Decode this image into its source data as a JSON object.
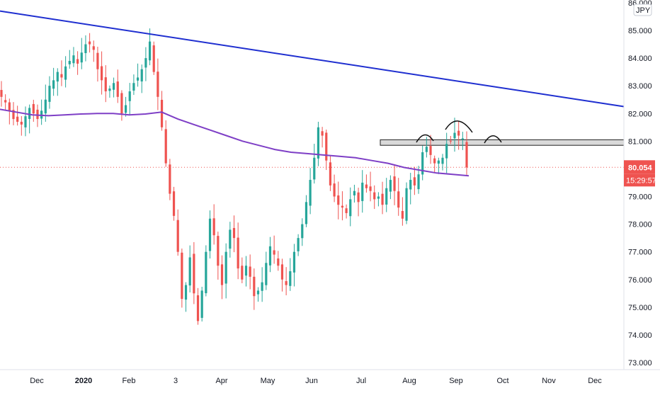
{
  "chart_data": {
    "type": "candlestick",
    "currency": "JPY",
    "price_axis": {
      "ticks": [
        "86.000",
        "85.000",
        "84.000",
        "83.000",
        "82.000",
        "81.000",
        "80.000",
        "79.000",
        "78.000",
        "77.000",
        "76.000",
        "75.000",
        "74.000",
        "73.000"
      ],
      "ylim": [
        72.8,
        86.1
      ]
    },
    "time_axis": {
      "labels": [
        {
          "text": "Dec",
          "bold": false
        },
        {
          "text": "2020",
          "bold": true
        },
        {
          "text": "Feb",
          "bold": false
        },
        {
          "text": "3",
          "bold": false
        },
        {
          "text": "Apr",
          "bold": false
        },
        {
          "text": "May",
          "bold": false
        },
        {
          "text": "Jun",
          "bold": false
        },
        {
          "text": "Jul",
          "bold": false
        },
        {
          "text": "Aug",
          "bold": false
        },
        {
          "text": "Sep",
          "bold": false
        },
        {
          "text": "Oct",
          "bold": false
        },
        {
          "text": "Nov",
          "bold": false
        },
        {
          "text": "Dec",
          "bold": false
        }
      ]
    },
    "last_price": "80.054",
    "countdown": "15:29:57",
    "last_price_color": "#ef5350",
    "up_color": "#26a69a",
    "down_color": "#ef5350",
    "trendline_color": "#1f2fd0",
    "moving_average_color": "#7e3fc6",
    "resistance_zone": [
      80.85,
      81.05
    ],
    "trendline": {
      "from": 85.7,
      "to": 82.25
    },
    "moving_average": [
      82.15,
      82.05,
      81.95,
      81.92,
      81.95,
      81.98,
      82.0,
      82.0,
      81.95,
      81.98,
      82.05,
      81.8,
      81.6,
      81.4,
      81.2,
      81.0,
      80.85,
      80.7,
      80.6,
      80.55,
      80.5,
      80.45,
      80.4,
      80.3,
      80.2,
      80.05,
      79.95,
      79.85,
      79.8,
      79.75
    ],
    "closes": [
      82.6,
      82.4,
      82.1,
      81.8,
      81.7,
      81.6,
      81.9,
      82.2,
      82.0,
      81.8,
      82.1,
      82.5,
      83.0,
      83.2,
      83.5,
      83.3,
      83.7,
      83.9,
      84.1,
      83.8,
      84.2,
      84.5,
      84.5,
      84.3,
      83.6,
      83.2,
      82.8,
      82.9,
      83.1,
      82.6,
      82.0,
      82.3,
      82.8,
      83.1,
      83.3,
      83.6,
      84.0,
      84.6,
      83.5,
      82.6,
      81.5,
      80.2,
      79.1,
      78.3,
      77.0,
      75.3,
      75.8,
      76.8,
      75.5,
      74.5,
      75.6,
      77.0,
      78.2,
      77.6,
      76.5,
      75.8,
      77.0,
      77.8,
      77.5,
      76.4,
      76.0,
      76.5,
      76.1,
      75.4,
      75.6,
      75.9,
      76.6,
      77.2,
      76.9,
      76.5,
      76.0,
      75.8,
      76.3,
      77.0,
      77.5,
      78.0,
      78.8,
      79.6,
      80.4,
      81.5,
      81.2,
      80.3,
      79.4,
      79.0,
      78.7,
      78.6,
      78.4,
      78.9,
      79.2,
      78.8,
      79.5,
      79.3,
      79.2,
      78.9,
      79.0,
      78.7,
      79.3,
      79.6,
      79.2,
      78.6,
      78.2,
      79.3,
      79.6,
      79.4,
      79.8,
      80.6,
      80.8,
      80.5,
      80.2,
      80.3,
      80.4,
      80.9,
      81.0,
      81.3,
      81.2,
      81.1,
      80.05
    ]
  }
}
